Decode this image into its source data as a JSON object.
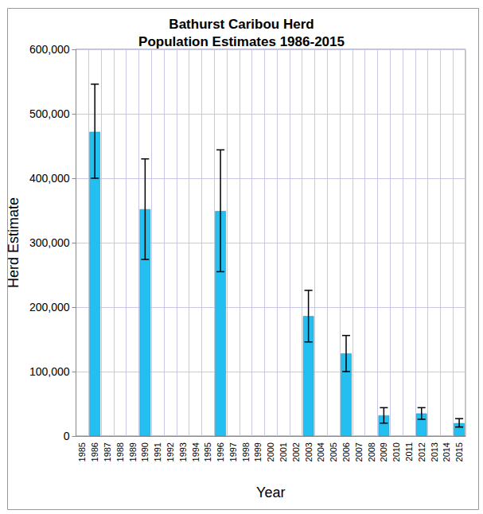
{
  "chart_data": {
    "type": "bar",
    "title": "Bathurst Caribou Herd\nPopulation Estimates 1986-2015",
    "x_label": "Year",
    "y_label": "Herd Estimate",
    "categories": [
      "1985",
      "1986",
      "1987",
      "1988",
      "1989",
      "1990",
      "1991",
      "1992",
      "1993",
      "1994",
      "1995",
      "1996",
      "1997",
      "1998",
      "1999",
      "2000",
      "2001",
      "2002",
      "2003",
      "2004",
      "2005",
      "2006",
      "2007",
      "2008",
      "2009",
      "2010",
      "2011",
      "2012",
      "2013",
      "2014",
      "2015"
    ],
    "values": [
      null,
      472000,
      null,
      null,
      null,
      352000,
      null,
      null,
      null,
      null,
      null,
      349000,
      null,
      null,
      null,
      null,
      null,
      null,
      186000,
      null,
      null,
      128000,
      null,
      null,
      32000,
      null,
      null,
      35000,
      null,
      null,
      20000
    ],
    "error_low": [
      null,
      400000,
      null,
      null,
      null,
      274000,
      null,
      null,
      null,
      null,
      null,
      255000,
      null,
      null,
      null,
      null,
      null,
      null,
      146000,
      null,
      null,
      100000,
      null,
      null,
      20000,
      null,
      null,
      26000,
      null,
      null,
      14000
    ],
    "error_high": [
      null,
      546000,
      null,
      null,
      null,
      430000,
      null,
      null,
      null,
      null,
      null,
      444000,
      null,
      null,
      null,
      null,
      null,
      null,
      226000,
      null,
      null,
      156000,
      null,
      null,
      44000,
      null,
      null,
      44000,
      null,
      null,
      27000
    ],
    "color": "#22bff0",
    "ylim": [
      0,
      600000
    ],
    "yticks": [
      0,
      {
        "value": 100000,
        "label": "100,000"
      },
      {
        "value": 200000,
        "label": "200,000"
      },
      {
        "value": 300000,
        "label": "300,000"
      },
      {
        "value": 400000,
        "label": "400,000"
      },
      {
        "value": 500000,
        "label": "500,000"
      },
      {
        "value": 600000,
        "label": "600,000"
      }
    ],
    "grid": true
  }
}
